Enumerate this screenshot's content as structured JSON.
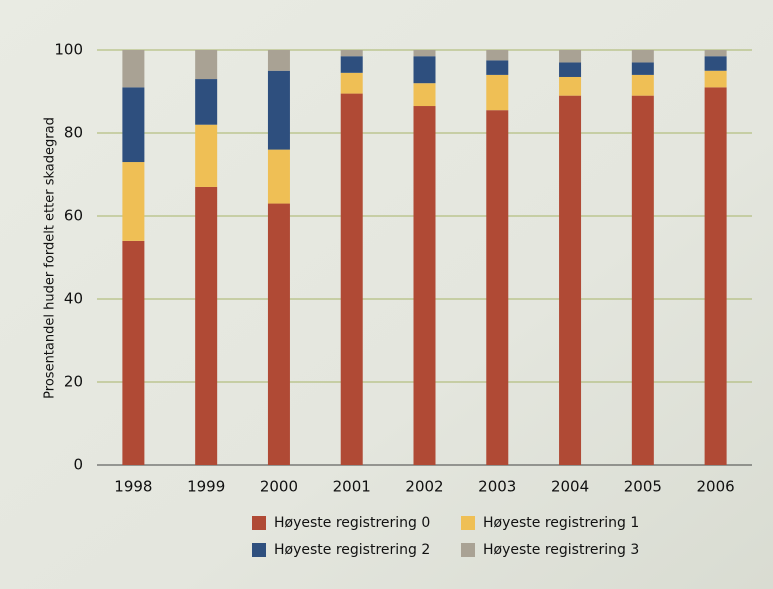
{
  "chart_data": {
    "type": "stacked_bar",
    "ylabel": "Prosentandel huder fordelt etter skadegrad",
    "categories": [
      "1998",
      "1999",
      "2000",
      "2001",
      "2002",
      "2003",
      "2004",
      "2005",
      "2006"
    ],
    "series": [
      {
        "name": "Høyeste registrering 0",
        "color": "#b04a35",
        "values": [
          54,
          67,
          63,
          89.5,
          86.5,
          85.5,
          89,
          89,
          91
        ]
      },
      {
        "name": "Høyeste registrering 1",
        "color": "#efbf55",
        "values": [
          19,
          15,
          13,
          5,
          5.5,
          8.5,
          4.5,
          5,
          4
        ]
      },
      {
        "name": "Høyeste registrering 2",
        "color": "#2e4f7e",
        "values": [
          18,
          11,
          19,
          4,
          6.5,
          3.5,
          3.5,
          3,
          3.5
        ]
      },
      {
        "name": "Høyeste registrering 3",
        "color": "#a9a294",
        "values": [
          9,
          7,
          5,
          1.5,
          1.5,
          2.5,
          3,
          3,
          1.5
        ]
      }
    ],
    "ylim": [
      0,
      100
    ],
    "yticks": [
      0,
      20,
      40,
      60,
      80,
      100
    ],
    "grid": true
  }
}
